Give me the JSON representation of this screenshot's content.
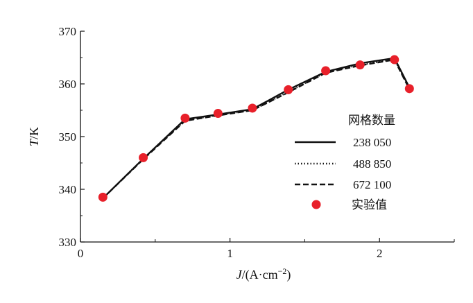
{
  "chart_data": {
    "type": "line",
    "x": [
      0.15,
      0.42,
      0.7,
      0.92,
      1.15,
      1.39,
      1.64,
      1.87,
      2.1,
      2.2
    ],
    "series": [
      {
        "name": "238 050",
        "style": "solid",
        "values": [
          338.3,
          345.8,
          353.3,
          354.2,
          355.2,
          358.9,
          362.3,
          363.9,
          364.9,
          359.3
        ]
      },
      {
        "name": "488 850",
        "style": "dotted",
        "values": [
          338.3,
          345.8,
          353.1,
          354.1,
          355.0,
          358.5,
          362.2,
          363.6,
          364.7,
          359.1
        ]
      },
      {
        "name": "672 100",
        "style": "dashed",
        "values": [
          338.3,
          345.7,
          353.0,
          354.0,
          355.0,
          358.4,
          362.1,
          363.5,
          364.6,
          359.0
        ]
      }
    ],
    "experimental": {
      "name": "实验值",
      "color": "#e8202a",
      "values": [
        338.5,
        346.0,
        353.5,
        354.4,
        355.4,
        358.9,
        362.5,
        363.6,
        364.6,
        359.1
      ]
    },
    "xlabel": {
      "var": "J",
      "unit": "/(A·cm",
      "sup": "−2",
      "close": ")"
    },
    "ylabel": {
      "var": "T",
      "unit": "/K"
    },
    "xlim": [
      0,
      2.5
    ],
    "ylim": [
      330,
      370
    ],
    "xticks": [
      0,
      1,
      2
    ],
    "xticks_minor": [
      0.5,
      1.5,
      2.5
    ],
    "yticks": [
      330,
      340,
      350,
      360,
      370
    ],
    "grid": false,
    "legend": {
      "title": "网格数量",
      "position": "center-right"
    }
  }
}
